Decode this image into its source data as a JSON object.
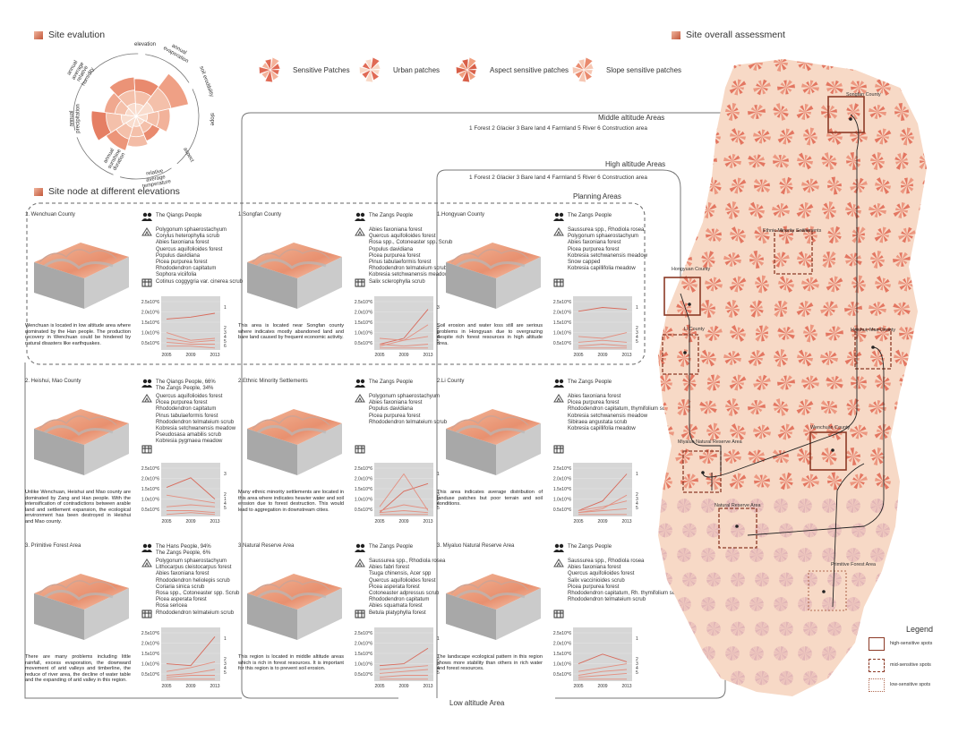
{
  "headers": {
    "site_evaluation": "Site evalution",
    "site_node": "Site node at different elevations",
    "overall": "Site overall assessment"
  },
  "radar_labels": [
    "elevation",
    "annual evaporation",
    "soil erodibility",
    "slope",
    "aspect",
    "relative average temperature",
    "annual sunshine duration",
    "annual precipitation",
    "annual average relative humidity"
  ],
  "patch_legend": [
    "Sensitive Patches",
    "Urban patches",
    "Aspect sensitive patches",
    "Slope sensitive patches"
  ],
  "areas": {
    "middle": "Middle altitude Areas",
    "high": "High altitude Areas",
    "planning": "Planning Areas",
    "low": "Low altitude Area",
    "types_middle": "1 Forest  2 Glacier  3 Bare land  4 Farmland  5 River  6 Construction area",
    "types_high": "1 Forest  2 Glacier  3 Bare land  4 Farmland  5 River  6 Construction area"
  },
  "chart_axis": {
    "yticks": [
      "2.5x10^6",
      "2.0x10^6",
      "1.5x10^6",
      "1.0x10^6",
      "0.5x10^6"
    ],
    "xticks": [
      "2005",
      "2009",
      "2013"
    ]
  },
  "nodes": [
    {
      "title": "1. Wenchuan County",
      "people": "The Qiangs People",
      "species": [
        "Polygonum sphaerostachyum",
        "Corylus heterophylla scrub",
        "Abies faxoniana forest",
        "Quercus aquifolioides forest",
        "Populus davidiana",
        "Picea purpurea forest",
        "Rhododendron capitatum",
        "Sophora viciifolia",
        "Cotinus coggygria var. cinerea scrub"
      ],
      "desc": "Wenchuan is located in low altitude area where dominated by the Han people. The production recovery in Wenchuan could be hindered by natural disasters like earthquakes.",
      "right_labels": [
        "1",
        "2",
        "3",
        "4",
        "5",
        "6"
      ]
    },
    {
      "title": "1.Songfan County",
      "people": "The Zangs People",
      "species": [
        "Abies faxoniana forest",
        "Quercus aquifolioides forest",
        "Rosa spp., Cotoneaster spp. Scrub",
        "Populus davidiana",
        "Picea purpurea forest",
        "Pinus tabulaeformis forest",
        "Rhododendron telmateium scrub",
        "Kobresia setchwanensis meadow",
        "Salix sclerophylla scrub"
      ],
      "desc": "This area is located near Songfan county where indicates mostly abandoned land and bare land caused by frequent economic activity.",
      "right_labels": [
        "3",
        "2",
        "1",
        "4",
        "5"
      ]
    },
    {
      "title": "1.Hongyuan County",
      "people": "The Zangs People",
      "species": [
        "Saussurea spp., Rhodiola rosea",
        "Polygonum sphaerostachyum",
        "Abies faxoniana forest",
        "Picea purpurea forest",
        "Kobresia setchwanensis meadow",
        "Snow capped",
        "Kobresia capillifolia meadow"
      ],
      "desc": "Soil erosion and water loss still are serious problems in Hongyuan due to overgrazing despite rich forest resources in high altitude area.",
      "right_labels": [
        "1",
        "2",
        "3",
        "4",
        "5"
      ]
    },
    {
      "title": "2. Heishui, Mao County",
      "people": "The Qiangs People, 66%\nThe Zangs People, 34%",
      "species": [
        "Quercus aquifolioides forest",
        "Picea purpurea forest",
        "Rhododendron capitatum",
        "Pinus tabulaeformis forest",
        "Rhododendron telmateium scrub",
        "Kobresia setchwanensis meadow",
        "Pseudosasa amabilis scrub",
        "Kobresia pygmaea meadow"
      ],
      "desc": "Unlike Wenchuan, Heishui and Mao county are dominated by Zang and Han people. With the intensification of contradictions between arable land and settlement expansion, the ecological environment has been destroyed in Heishui and Mao county.",
      "right_labels": [
        "3",
        "2",
        "1",
        "4",
        "5"
      ]
    },
    {
      "title": "2.Ethnic Minority Settlements",
      "people": "The Zangs People",
      "species": [
        "Polygonum sphaerostachyum",
        "Abies faxoniana forest",
        "Populus davidiana",
        "Picea purpurea forest",
        "Rhododendron telmateium scrub"
      ],
      "desc": "Many ethnic minority settlements are located in this area where indicates heavier water and soil erosion due to forest destruction. This would lead to aggregation in downstream cities.",
      "right_labels": [
        "1",
        "3",
        "2",
        "4",
        "5"
      ]
    },
    {
      "title": "2.Li County",
      "people": "The Zangs People",
      "species": [
        "Abies faxoniana forest",
        "Picea purpurea forest",
        "Rhododendron capitatum, thymifolium scrub",
        "Kobresia setchwanensis meadow",
        "Sibiraea angustata scrub",
        "Kobresia capillifolia meadow"
      ],
      "desc": "This area indicates average distribution of landuse patches but poor terrain and soil conditions.",
      "right_labels": [
        "1",
        "2",
        "3",
        "4",
        "5"
      ]
    },
    {
      "title": "3. Primitive Forest Area",
      "people": "The Hans People, 94%\nThe Zangs People, 6%",
      "species": [
        "Polygonum sphaerostachyum",
        "Lithocarpus cleistocarpus forest",
        "Abies faxoniana forest",
        "Rhododendron heliolepis scrub",
        "Coriaria sinica scrub",
        "Rosa spp., Cotoneaster spp. Scrub",
        "Picea asperata forest",
        "Rosa sericea",
        "Rhododendron telmateium scrub"
      ],
      "desc": "There are many problems including little rainfall, excess evaporation, the downward movement of arid valleys and timberline, the reduce of river area, the decline of water table and the expanding of arid valley in this region.",
      "right_labels": [
        "1",
        "2",
        "3",
        "4",
        "5"
      ]
    },
    {
      "title": "3.Natural Reserve Area",
      "people": "The Zangs People",
      "species": [
        "Saussurea spp., Rhodiola rosea",
        "Abies fabri forest",
        "Tsuga chinensis, Acer spp",
        "Quercus aquifolioides forest",
        "Picea asperata forest",
        "Cotoneaster adpressus scrub",
        "Rhododendron capitatum",
        "Abies squamata forest",
        "Betula platyphylla forest"
      ],
      "desc": "This region is located in middle altitude areas which is rich in forest resources. It is important for this region is to prevent soil erosion.",
      "right_labels": [
        "1",
        "2",
        "3",
        "4",
        "5"
      ]
    },
    {
      "title": "3. Miyaluo Natural Reserve Area",
      "people": "The Zangs People",
      "species": [
        "Saussurea spp., Rhodiola rosea",
        "Abies faxoniana forest",
        "Quercus aquifolioides forest",
        "Salix vaccinioides scrub",
        "Picea purpurea forest",
        "Rhododendron capitatum, Rh. thymifolium scrub",
        "Rhododendron telmateium scrub"
      ],
      "desc": "The landscape ecological pattern in this region shows more stability than others in rich water and forest resources.",
      "right_labels": [
        "1",
        "2",
        "3",
        "4",
        "5"
      ]
    }
  ],
  "map_labels": [
    "Songfan County",
    "Ethnic Minority Settlements",
    "Hongyuan County",
    "Li County",
    "Heishui, Mao County",
    "Wenchuan County",
    "Miyaluo Natural Reserve Area",
    "Natural Reserve Area",
    "Primitive Forest Area"
  ],
  "legend": {
    "title": "Legend",
    "high": "high-sensitive spots",
    "mid": "mid-sensitive spots",
    "low": "low-sensitive spots"
  },
  "colors": {
    "accent": "#a8503a",
    "patch": "#e06a55",
    "patch_light": "#f4b29a",
    "line": "#e07a6a"
  }
}
